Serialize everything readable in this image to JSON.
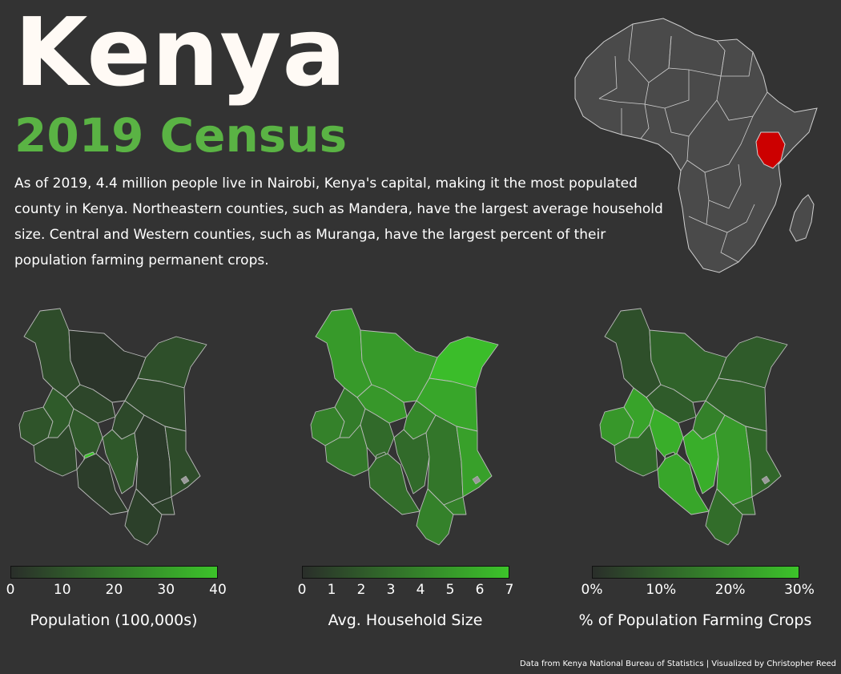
{
  "header": {
    "title": "Kenya",
    "subtitle": "2019 Census",
    "description": "As of 2019, 4.4 million people live in Nairobi, Kenya's capital, making it the most populated county in Kenya. Northeastern counties, such as Mandera, have the largest average household size. Central and Western counties, such as Muranga, have the largest percent of their population farming permanent crops."
  },
  "colors": {
    "background": "#333333",
    "title": "#fffaf5",
    "accent_green": "#5ab344",
    "highlight_red": "#cc0000",
    "scale_low": "#2a2e2a",
    "scale_high": "#3cc42a",
    "border": "#bbbbbb"
  },
  "locator_map": {
    "highlighted_country": "Kenya",
    "highlight_color": "#cc0000"
  },
  "maps": [
    {
      "variable": "population",
      "label": "Population (100,000s)",
      "ticks": [
        "0",
        "10",
        "20",
        "30",
        "40"
      ],
      "range": [
        0,
        40
      ],
      "levels": {
        "northwest": 0.2,
        "north": 0.04,
        "northeast": 0.22,
        "east": 0.18,
        "coast_north": 0.2,
        "coast_south": 0.12,
        "central_belt": 0.28,
        "southeast": 0.08,
        "south": 0.1,
        "southwest": 0.18,
        "west": 0.25,
        "lake": 0.3,
        "nairobi": 1.0,
        "mid": 0.18,
        "upper_mid": 0.16
      }
    },
    {
      "variable": "household_size",
      "label": "Avg. Household Size",
      "ticks": [
        "0",
        "1",
        "2",
        "3",
        "4",
        "5",
        "6",
        "7"
      ],
      "range": [
        0,
        7
      ],
      "levels": {
        "northwest": 0.72,
        "north": 0.72,
        "northeast": 0.95,
        "east": 0.8,
        "coast_north": 0.76,
        "coast_south": 0.55,
        "central_belt": 0.4,
        "southeast": 0.48,
        "south": 0.42,
        "southwest": 0.5,
        "west": 0.55,
        "lake": 0.52,
        "nairobi": 0.35,
        "mid": 0.6,
        "upper_mid": 0.7
      }
    },
    {
      "variable": "crop_farming",
      "label": "% of Population Farming Crops",
      "ticks": [
        "0%",
        "10%",
        "20%",
        "30%"
      ],
      "range": [
        0,
        30
      ],
      "levels": {
        "northwest": 0.22,
        "north": 0.35,
        "northeast": 0.3,
        "east": 0.34,
        "coast_north": 0.38,
        "coast_south": 0.42,
        "central_belt": 0.85,
        "southeast": 0.72,
        "south": 0.8,
        "southwest": 0.4,
        "west": 0.7,
        "lake": 0.78,
        "nairobi": 0.1,
        "mid": 0.55,
        "upper_mid": 0.3
      }
    }
  ],
  "credit": "Data from Kenya National Bureau of Statistics | Visualized by Christopher Reed"
}
